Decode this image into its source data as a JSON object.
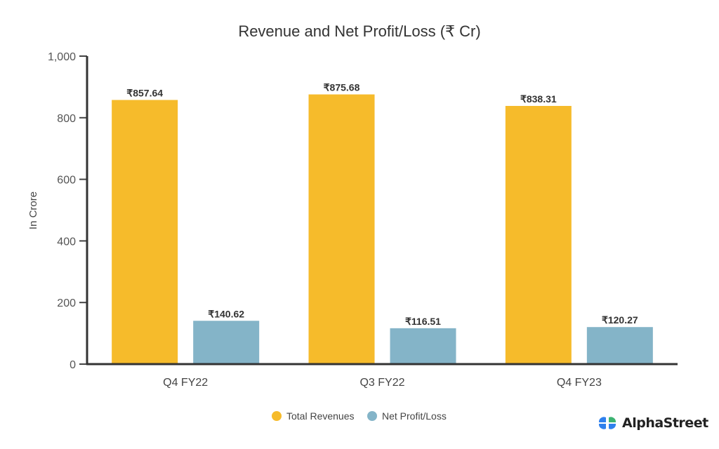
{
  "chart_data": {
    "type": "bar",
    "title": "Revenue and Net Profit/Loss (₹ Cr)",
    "xlabel": "",
    "ylabel": "In Crore",
    "ylim": [
      0,
      1000
    ],
    "yticks": [
      0,
      200,
      400,
      600,
      800,
      1000
    ],
    "ytick_labels": [
      "0",
      "200",
      "400",
      "600",
      "800",
      "1,000"
    ],
    "categories": [
      "Q4 FY22",
      "Q3 FY22",
      "Q4 FY23"
    ],
    "series": [
      {
        "name": "Total Revenues",
        "color": "#F6BB2B",
        "values": [
          857.64,
          875.68,
          838.31
        ],
        "labels": [
          "₹857.64",
          "₹875.68",
          "₹838.31"
        ]
      },
      {
        "name": "Net Profit/Loss",
        "color": "#84B4C8",
        "values": [
          140.62,
          116.51,
          120.27
        ],
        "labels": [
          "₹140.62",
          "₹116.51",
          "₹120.27"
        ]
      }
    ],
    "legend": "bottom-center",
    "grid": false
  },
  "brand": {
    "name": "AlphaStreet",
    "icon_colors": [
      "#2F80ED",
      "#3CB371"
    ]
  }
}
